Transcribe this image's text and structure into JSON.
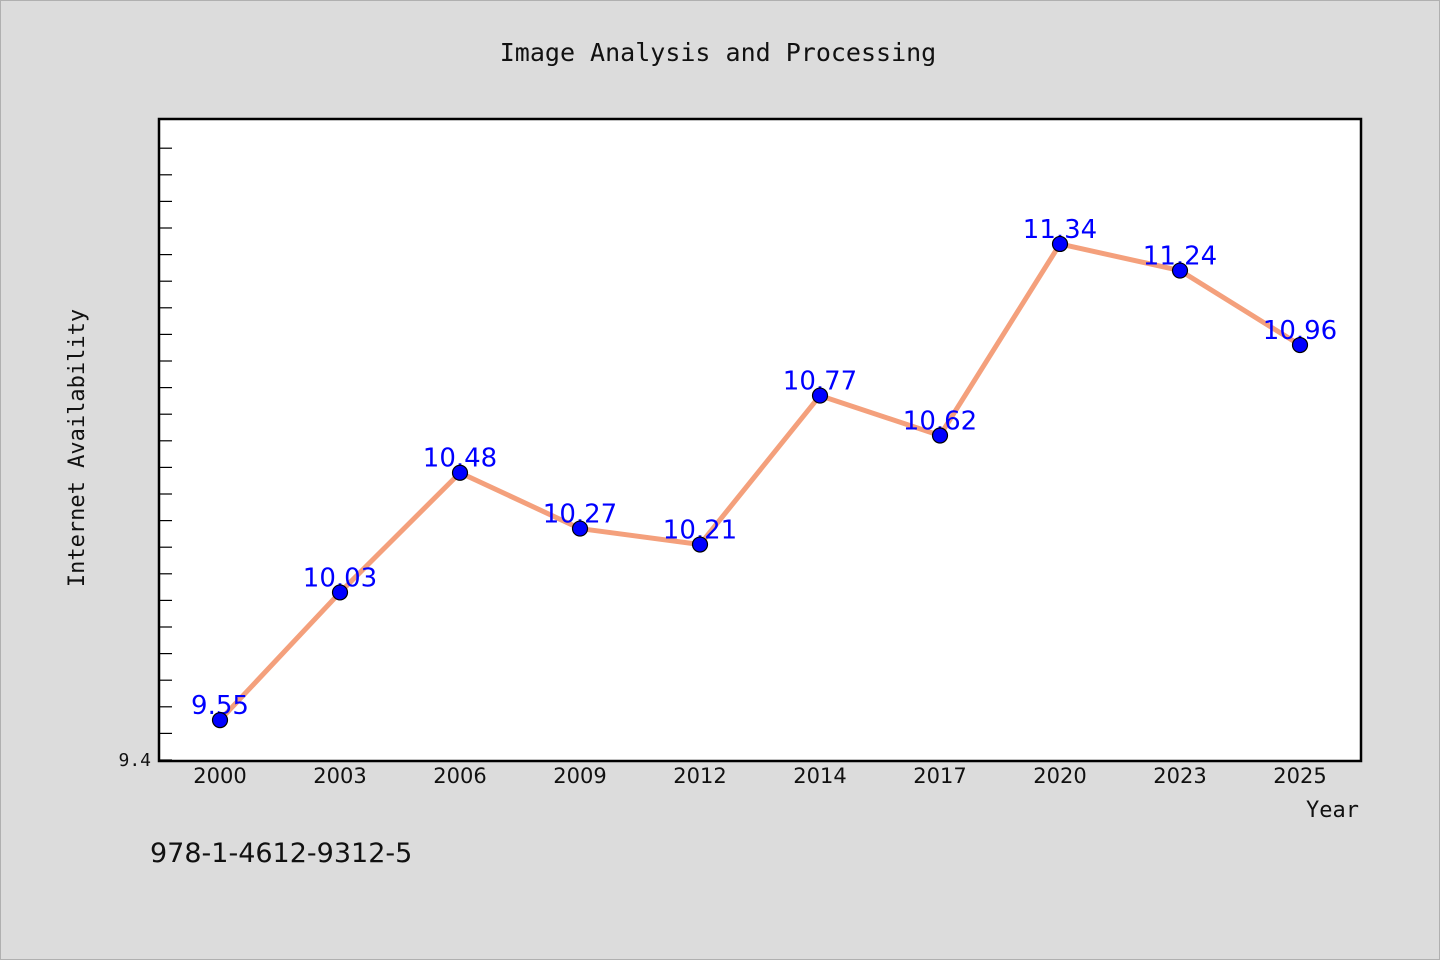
{
  "chart_data": {
    "type": "line",
    "title": "Image Analysis and Processing",
    "xlabel": "Year",
    "ylabel": "Internet Availability",
    "categories": [
      "2000",
      "2003",
      "2006",
      "2009",
      "2012",
      "2014",
      "2017",
      "2020",
      "2023",
      "2025"
    ],
    "series": [
      {
        "values": [
          9.55,
          10.03,
          10.48,
          10.27,
          10.21,
          10.77,
          10.62,
          11.34,
          11.24,
          10.96
        ]
      }
    ],
    "ylim": [
      9.4,
      11.8
    ],
    "y_tick_labels": [
      "9.4"
    ],
    "grid": false,
    "line_color": "#f4a07c",
    "marker_color": "#0000ff",
    "label_color": "#0000ff"
  },
  "footer": {
    "isbn": "978-1-4612-9312-5"
  }
}
